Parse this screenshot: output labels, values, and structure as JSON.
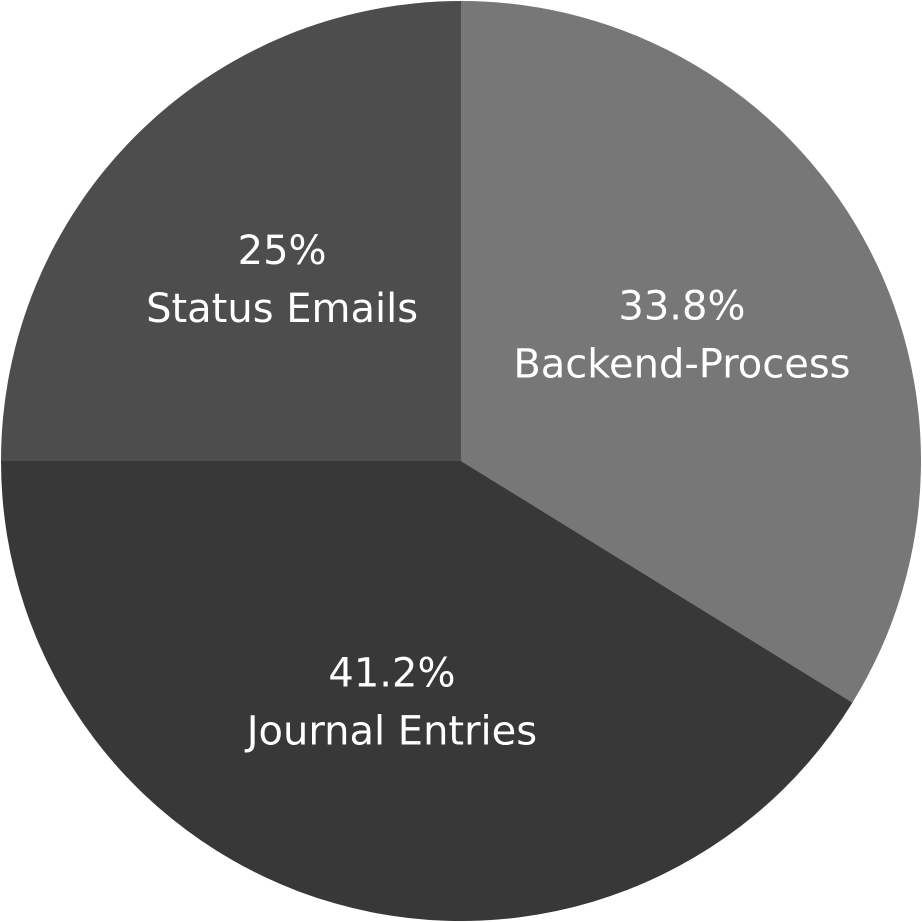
{
  "chart_data": {
    "type": "pie",
    "title": "",
    "slices": [
      {
        "label": "Backend-Process",
        "value": 33.8,
        "value_label": "33.8%",
        "color": "#777777"
      },
      {
        "label": "Journal Entries",
        "value": 41.2,
        "value_label": "41.2%",
        "color": "#383838"
      },
      {
        "label": "Status Emails",
        "value": 25,
        "value_label": "25%",
        "color": "#4d4d4d"
      }
    ],
    "start": "12 o'clock",
    "direction": "clockwise",
    "legend": "none"
  }
}
